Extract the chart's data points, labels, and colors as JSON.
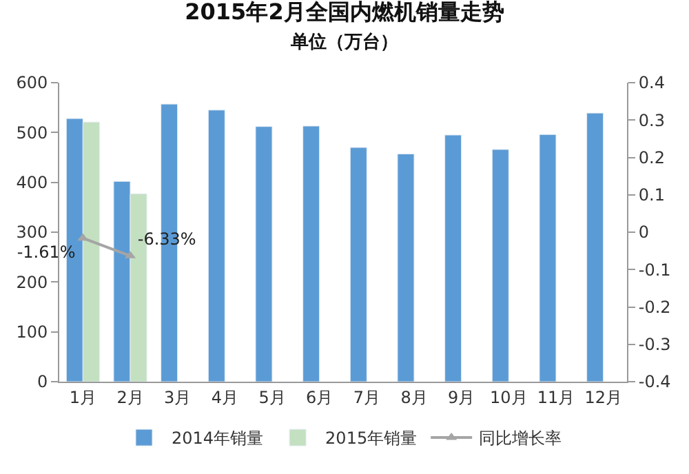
{
  "chart_data": {
    "type": "bar",
    "title": "2015年2月全国内燃机销量走势",
    "subtitle": "单位（万台）",
    "categories": [
      "1月",
      "2月",
      "3月",
      "4月",
      "5月",
      "6月",
      "7月",
      "8月",
      "9月",
      "10月",
      "11月",
      "12月"
    ],
    "series": [
      {
        "name": "2014年销量",
        "color": "#5b9bd5",
        "values": [
          528,
          402,
          557,
          545,
          512,
          513,
          470,
          457,
          495,
          466,
          496,
          539
        ]
      },
      {
        "name": "2015年销量",
        "color": "#c3e0c0",
        "values": [
          521,
          377,
          null,
          null,
          null,
          null,
          null,
          null,
          null,
          null,
          null,
          null
        ]
      },
      {
        "name": "同比增长率",
        "type": "line",
        "axis": "y2",
        "color": "#a5a5a5",
        "marker": "triangle",
        "values": [
          -0.0161,
          -0.0633,
          null,
          null,
          null,
          null,
          null,
          null,
          null,
          null,
          null,
          null
        ],
        "value_labels": [
          "-1.61%",
          "-6.33%",
          null,
          null,
          null,
          null,
          null,
          null,
          null,
          null,
          null,
          null
        ]
      }
    ],
    "ylim": [
      0,
      600
    ],
    "yticks": [
      0,
      100,
      200,
      300,
      400,
      500,
      600
    ],
    "y2lim": [
      -0.4,
      0.4
    ],
    "y2ticks": [
      -0.4,
      -0.3,
      -0.2,
      -0.1,
      0,
      0.1,
      0.2,
      0.3,
      0.4
    ],
    "legend": "bottom"
  }
}
